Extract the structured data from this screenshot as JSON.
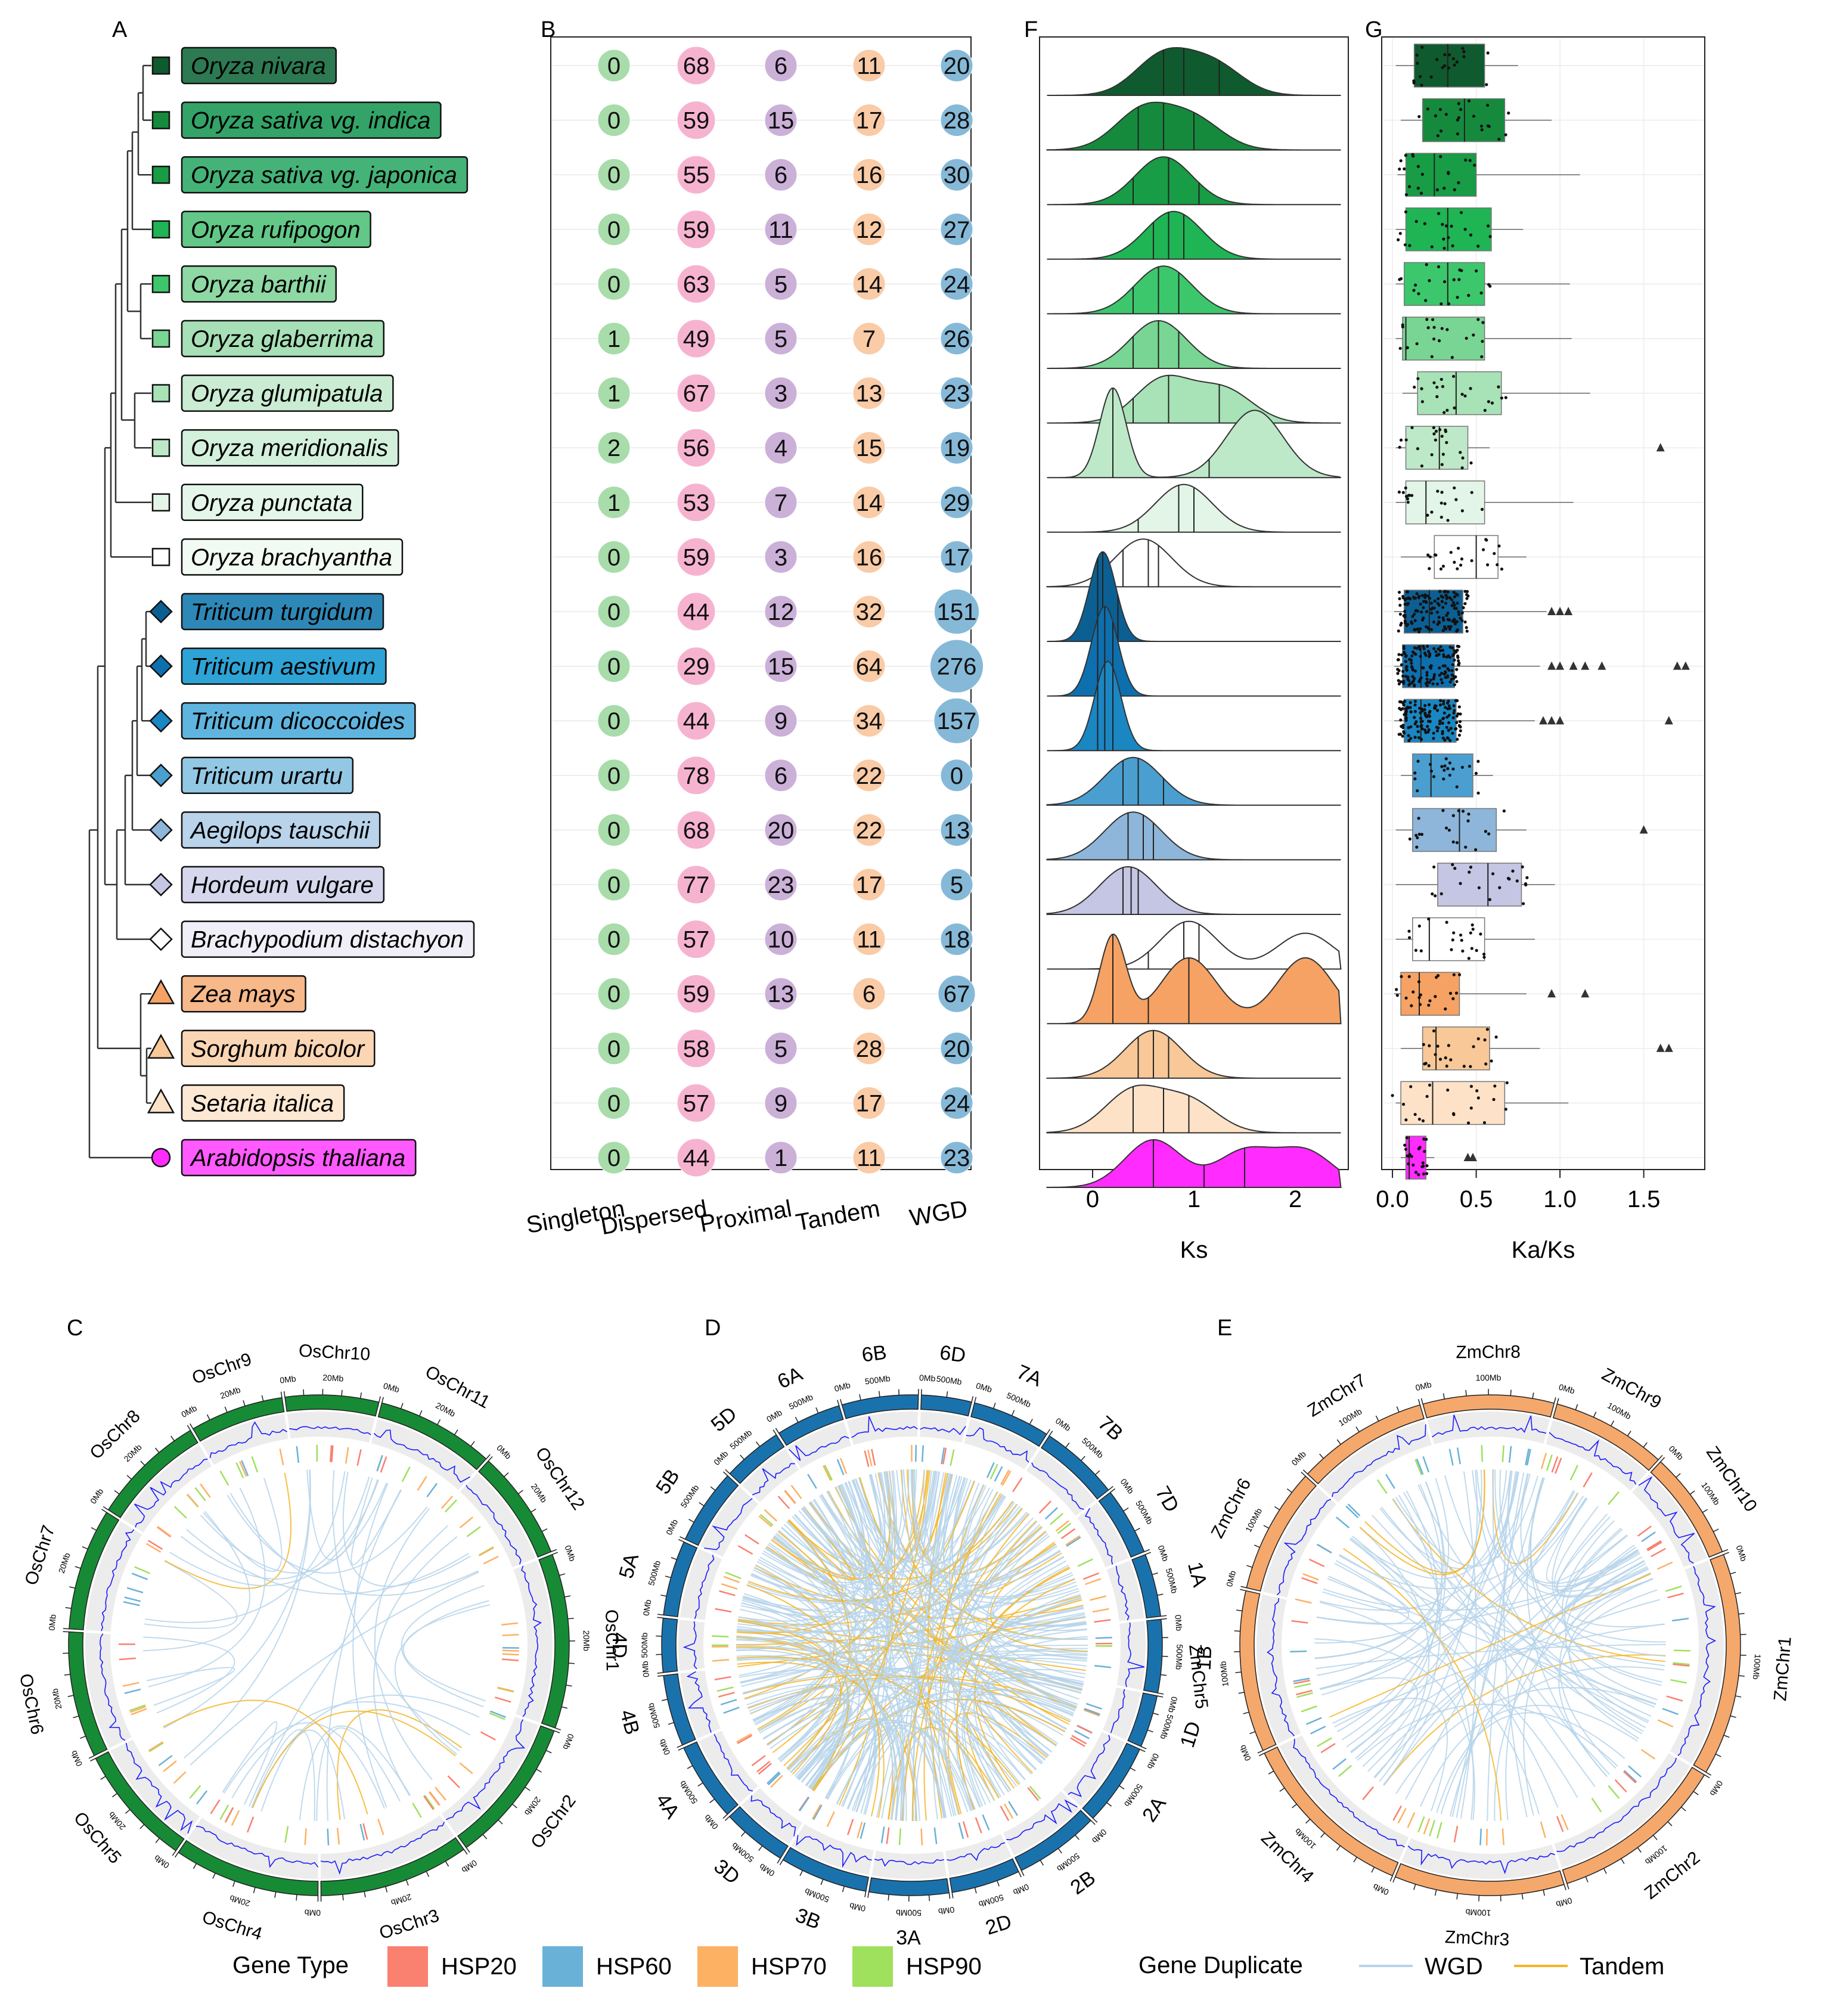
{
  "panel_labels": {
    "A": "A",
    "B": "B",
    "F": "F",
    "G": "G",
    "C": "C",
    "D": "D",
    "E": "E"
  },
  "species": [
    {
      "name": "Oryza nivara",
      "color": "#2d7a52",
      "text_color": "#000000",
      "marker": "square",
      "marker_color": "#0f5a2e"
    },
    {
      "name": "Oryza sativa vg. indica",
      "color": "#33a368",
      "text_color": "#000000",
      "marker": "square",
      "marker_color": "#158a3d"
    },
    {
      "name": "Oryza sativa vg. japonica",
      "color": "#45b377",
      "text_color": "#000000",
      "marker": "square",
      "marker_color": "#189c45"
    },
    {
      "name": "Oryza rufipogon",
      "color": "#63c887",
      "text_color": "#000000",
      "marker": "square",
      "marker_color": "#1fb454"
    },
    {
      "name": "Oryza barthii",
      "color": "#8ed8a4",
      "text_color": "#000000",
      "marker": "square",
      "marker_color": "#3dc76c"
    },
    {
      "name": "Oryza glaberrima",
      "color": "#a7e0b6",
      "text_color": "#000000",
      "marker": "square",
      "marker_color": "#79d593"
    },
    {
      "name": "Oryza glumipatula",
      "color": "#c9ecd2",
      "text_color": "#000000",
      "marker": "square",
      "marker_color": "#a8e2b7"
    },
    {
      "name": "Oryza meridionalis",
      "color": "#d3f0dc",
      "text_color": "#000000",
      "marker": "square",
      "marker_color": "#bde9c8"
    },
    {
      "name": "Oryza punctata",
      "color": "#e4f6e9",
      "text_color": "#000000",
      "marker": "square",
      "marker_color": "#e2f5e7"
    },
    {
      "name": "Oryza brachyantha",
      "color": "#f2faf4",
      "text_color": "#000000",
      "marker": "square",
      "marker_color": "#ffffff"
    },
    {
      "name": "Triticum turgidum",
      "color": "#2e88b7",
      "text_color": "#000000",
      "marker": "diamond",
      "marker_color": "#0c5f93"
    },
    {
      "name": "Triticum aestivum",
      "color": "#2ea3d6",
      "text_color": "#000000",
      "marker": "diamond",
      "marker_color": "#0e6fae"
    },
    {
      "name": "Triticum dicoccoides",
      "color": "#5fb5df",
      "text_color": "#000000",
      "marker": "diamond",
      "marker_color": "#1a86c2"
    },
    {
      "name": "Triticum urartu",
      "color": "#93c8e4",
      "text_color": "#000000",
      "marker": "diamond",
      "marker_color": "#4a9fd0"
    },
    {
      "name": "Aegilops tauschii",
      "color": "#b9d3ea",
      "text_color": "#000000",
      "marker": "diamond",
      "marker_color": "#8eb6da"
    },
    {
      "name": "Hordeum vulgare",
      "color": "#d6d7ec",
      "text_color": "#000000",
      "marker": "diamond",
      "marker_color": "#c4c6e4"
    },
    {
      "name": "Brachypodium distachyon",
      "color": "#f0eef6",
      "text_color": "#000000",
      "marker": "diamond",
      "marker_color": "#ffffff"
    },
    {
      "name": "Zea mays",
      "color": "#f7b88a",
      "text_color": "#000000",
      "marker": "triangle",
      "marker_color": "#f5a264"
    },
    {
      "name": "Sorghum bicolor",
      "color": "#fbd6b4",
      "text_color": "#000000",
      "marker": "triangle",
      "marker_color": "#f8c898"
    },
    {
      "name": "Setaria italica",
      "color": "#fde8d3",
      "text_color": "#000000",
      "marker": "triangle",
      "marker_color": "#fde2c8"
    },
    {
      "name": "Arabidopsis thaliana",
      "color": "#ff5aff",
      "text_color": "#000000",
      "marker": "circle",
      "marker_color": "#ff2bff"
    }
  ],
  "chart_data": [
    {
      "type": "table",
      "title": "B",
      "columns": [
        "Singleton",
        "Dispersed",
        "Proximal",
        "Tandem",
        "WGD"
      ],
      "column_colors": [
        "#a8dcaa",
        "#f6b3cf",
        "#cbb0d8",
        "#f9cba6",
        "#86b9d8"
      ],
      "rows": [
        [
          0,
          68,
          6,
          11,
          20
        ],
        [
          0,
          59,
          15,
          17,
          28
        ],
        [
          0,
          55,
          6,
          16,
          30
        ],
        [
          0,
          59,
          11,
          12,
          27
        ],
        [
          0,
          63,
          5,
          14,
          24
        ],
        [
          1,
          49,
          5,
          7,
          26
        ],
        [
          1,
          67,
          3,
          13,
          23
        ],
        [
          2,
          56,
          4,
          15,
          19
        ],
        [
          1,
          53,
          7,
          14,
          29
        ],
        [
          0,
          59,
          3,
          16,
          17
        ],
        [
          0,
          44,
          12,
          32,
          151
        ],
        [
          0,
          29,
          15,
          64,
          276
        ],
        [
          0,
          44,
          9,
          34,
          157
        ],
        [
          0,
          78,
          6,
          22,
          0
        ],
        [
          0,
          68,
          20,
          22,
          13
        ],
        [
          0,
          77,
          23,
          17,
          5
        ],
        [
          0,
          57,
          10,
          11,
          18
        ],
        [
          0,
          59,
          13,
          6,
          67
        ],
        [
          0,
          58,
          5,
          28,
          20
        ],
        [
          0,
          57,
          9,
          17,
          24
        ],
        [
          0,
          44,
          1,
          11,
          23
        ]
      ]
    },
    {
      "type": "area",
      "title": "F",
      "xlabel": "Ks",
      "xlim": [
        -0.5,
        2.5
      ],
      "xticks": [
        0,
        1,
        2
      ],
      "note": "ridgeline density of Ks per species; peak = modal Ks, quartile lines shown",
      "series": [
        {
          "name": "Oryza nivara",
          "peaks": [
            0.7,
            1.2
          ],
          "quartiles": [
            0.7,
            0.9,
            1.25
          ]
        },
        {
          "name": "Oryza sativa vg. indica",
          "peaks": [
            0.5,
            1.0
          ],
          "quartiles": [
            0.45,
            0.7,
            1.0
          ]
        },
        {
          "name": "Oryza sativa vg. japonica",
          "peaks": [
            0.7
          ],
          "quartiles": [
            0.4,
            0.75,
            1.05
          ]
        },
        {
          "name": "Oryza rufipogon",
          "peaks": [
            0.8
          ],
          "quartiles": [
            0.6,
            0.75,
            0.9
          ]
        },
        {
          "name": "Oryza barthii",
          "peaks": [
            0.7
          ],
          "quartiles": [
            0.4,
            0.65,
            0.85
          ]
        },
        {
          "name": "Oryza glaberrima",
          "peaks": [
            0.65
          ],
          "quartiles": [
            0.4,
            0.65,
            0.85
          ]
        },
        {
          "name": "Oryza glumipatula",
          "peaks": [
            0.7,
            1.3
          ],
          "quartiles": [
            0.4,
            0.75,
            1.25
          ]
        },
        {
          "name": "Oryza meridionalis",
          "peaks": [
            0.2,
            1.6
          ],
          "quartiles": [
            0.2,
            0.7,
            1.15
          ]
        },
        {
          "name": "Oryza punctata",
          "peaks": [
            0.9
          ],
          "quartiles": [
            0.45,
            0.85,
            1.0
          ]
        },
        {
          "name": "Oryza brachyantha",
          "peaks": [
            0.5
          ],
          "quartiles": [
            0.3,
            0.55,
            0.65
          ]
        },
        {
          "name": "Triticum turgidum",
          "peaks": [
            0.1
          ],
          "quartiles": [
            0.05,
            0.1,
            0.25
          ]
        },
        {
          "name": "Triticum aestivum",
          "peaks": [
            0.12
          ],
          "quartiles": [
            0.05,
            0.12,
            0.2
          ]
        },
        {
          "name": "Triticum dicoccoides",
          "peaks": [
            0.15
          ],
          "quartiles": [
            0.05,
            0.12,
            0.2
          ]
        },
        {
          "name": "Triticum urartu",
          "peaks": [
            0.4
          ],
          "quartiles": [
            0.3,
            0.45,
            0.7
          ]
        },
        {
          "name": "Aegilops tauschii",
          "peaks": [
            0.4
          ],
          "quartiles": [
            0.35,
            0.5,
            0.6
          ]
        },
        {
          "name": "Hordeum vulgare",
          "peaks": [
            0.35
          ],
          "quartiles": [
            0.3,
            0.38,
            0.45
          ]
        },
        {
          "name": "Brachypodium distachyon",
          "peaks": [
            0.95,
            2.1
          ],
          "quartiles": [
            0.55,
            0.9,
            1.05
          ]
        },
        {
          "name": "Zea mays",
          "peaks": [
            0.2,
            0.95,
            2.1
          ],
          "quartiles": [
            0.2,
            0.55,
            0.95
          ]
        },
        {
          "name": "Sorghum bicolor",
          "peaks": [
            0.6
          ],
          "quartiles": [
            0.45,
            0.6,
            0.75
          ]
        },
        {
          "name": "Setaria italica",
          "peaks": [
            0.4,
            0.95
          ],
          "quartiles": [
            0.4,
            0.7,
            0.95
          ]
        },
        {
          "name": "Arabidopsis thaliana",
          "peaks": [
            0.6,
            1.5,
            2.1
          ],
          "quartiles": [
            0.6,
            1.1,
            1.5
          ]
        }
      ]
    },
    {
      "type": "bar",
      "subtype": "boxplot",
      "title": "G",
      "xlabel": "Ka/Ks",
      "xlim": [
        -0.05,
        1.85
      ],
      "xticks": [
        0.0,
        0.5,
        1.0,
        1.5
      ],
      "series": [
        {
          "name": "Oryza nivara",
          "q1": 0.13,
          "median": 0.33,
          "q3": 0.55,
          "whisker": [
            0.02,
            0.75
          ],
          "outliers": []
        },
        {
          "name": "Oryza sativa vg. indica",
          "q1": 0.18,
          "median": 0.43,
          "q3": 0.67,
          "whisker": [
            0.05,
            0.95
          ],
          "outliers": []
        },
        {
          "name": "Oryza sativa vg. japonica",
          "q1": 0.08,
          "median": 0.25,
          "q3": 0.5,
          "whisker": [
            0.03,
            1.12
          ],
          "outliers": []
        },
        {
          "name": "Oryza rufipogon",
          "q1": 0.08,
          "median": 0.33,
          "q3": 0.59,
          "whisker": [
            0.02,
            0.78
          ],
          "outliers": []
        },
        {
          "name": "Oryza barthii",
          "q1": 0.07,
          "median": 0.33,
          "q3": 0.55,
          "whisker": [
            0.02,
            1.06
          ],
          "outliers": []
        },
        {
          "name": "Oryza glaberrima",
          "q1": 0.06,
          "median": 0.08,
          "q3": 0.55,
          "whisker": [
            0.02,
            1.07
          ],
          "outliers": []
        },
        {
          "name": "Oryza glumipatula",
          "q1": 0.15,
          "median": 0.38,
          "q3": 0.65,
          "whisker": [
            0.06,
            1.18
          ],
          "outliers": []
        },
        {
          "name": "Oryza meridionalis",
          "q1": 0.08,
          "median": 0.28,
          "q3": 0.45,
          "whisker": [
            0.02,
            0.58
          ],
          "outliers": [
            1.6
          ]
        },
        {
          "name": "Oryza punctata",
          "q1": 0.08,
          "median": 0.2,
          "q3": 0.55,
          "whisker": [
            0.02,
            1.08
          ],
          "outliers": []
        },
        {
          "name": "Oryza brachyantha",
          "q1": 0.25,
          "median": 0.5,
          "q3": 0.63,
          "whisker": [
            0.05,
            0.8
          ],
          "outliers": []
        },
        {
          "name": "Triticum turgidum",
          "q1": 0.07,
          "median": 0.22,
          "q3": 0.42,
          "whisker": [
            0.01,
            0.92
          ],
          "outliers": [
            0.95,
            1.0,
            1.05
          ]
        },
        {
          "name": "Triticum aestivum",
          "q1": 0.06,
          "median": 0.17,
          "q3": 0.37,
          "whisker": [
            0.01,
            0.88
          ],
          "outliers": [
            0.95,
            1.0,
            1.08,
            1.15,
            1.25,
            1.7,
            1.75
          ]
        },
        {
          "name": "Triticum dicoccoides",
          "q1": 0.07,
          "median": 0.17,
          "q3": 0.38,
          "whisker": [
            0.01,
            0.85
          ],
          "outliers": [
            0.9,
            0.95,
            1.0,
            1.65
          ]
        },
        {
          "name": "Triticum urartu",
          "q1": 0.12,
          "median": 0.23,
          "q3": 0.48,
          "whisker": [
            0.05,
            0.6
          ],
          "outliers": []
        },
        {
          "name": "Aegilops tauschii",
          "q1": 0.12,
          "median": 0.4,
          "q3": 0.62,
          "whisker": [
            0.02,
            0.8
          ],
          "outliers": [
            1.5
          ]
        },
        {
          "name": "Hordeum vulgare",
          "q1": 0.27,
          "median": 0.57,
          "q3": 0.77,
          "whisker": [
            0.02,
            0.97
          ],
          "outliers": []
        },
        {
          "name": "Brachypodium distachyon",
          "q1": 0.12,
          "median": 0.22,
          "q3": 0.55,
          "whisker": [
            0.02,
            0.85
          ],
          "outliers": []
        },
        {
          "name": "Zea mays",
          "q1": 0.05,
          "median": 0.16,
          "q3": 0.4,
          "whisker": [
            0.01,
            0.8
          ],
          "outliers": [
            0.95,
            1.15
          ]
        },
        {
          "name": "Sorghum bicolor",
          "q1": 0.18,
          "median": 0.26,
          "q3": 0.58,
          "whisker": [
            0.05,
            0.88
          ],
          "outliers": [
            1.6,
            1.65
          ]
        },
        {
          "name": "Setaria italica",
          "q1": 0.05,
          "median": 0.24,
          "q3": 0.67,
          "whisker": [
            0.02,
            1.05
          ],
          "outliers": []
        },
        {
          "name": "Arabidopsis thaliana",
          "q1": 0.08,
          "median": 0.1,
          "q3": 0.2,
          "whisker": [
            0.05,
            0.25
          ],
          "outliers": [
            0.45,
            0.48
          ]
        }
      ]
    }
  ],
  "circos": {
    "C": {
      "title": "C",
      "ring_color": "#178a35",
      "tick_labels": [
        "0Mb",
        "20Mb",
        "40Mb"
      ],
      "chromosomes": [
        "OsChr1",
        "OsChr2",
        "OsChr3",
        "OsChr4",
        "OsChr5",
        "OsChr6",
        "OsChr7",
        "OsChr8",
        "OsChr9",
        "OsChr10",
        "OsChr11",
        "OsChr12"
      ],
      "sizes": [
        43,
        36,
        37,
        36,
        30,
        31,
        30,
        28,
        23,
        23,
        29,
        27
      ]
    },
    "D": {
      "title": "D",
      "ring_color": "#1a72ad",
      "tick_labels": [
        "0Mb",
        "500Mb"
      ],
      "chromosomes": [
        "1A",
        "1B",
        "1D",
        "2A",
        "2B",
        "2D",
        "3A",
        "3B",
        "3D",
        "4A",
        "4B",
        "4D",
        "5A",
        "5B",
        "5D",
        "6A",
        "6B",
        "6D",
        "7A",
        "7B",
        "7D"
      ],
      "sizes": [
        594,
        689,
        495,
        780,
        801,
        651,
        750,
        830,
        615,
        744,
        673,
        509,
        709,
        713,
        566,
        618,
        720,
        473,
        736,
        750,
        638
      ]
    },
    "E": {
      "title": "E",
      "ring_color": "#f5a86c",
      "tick_labels": [
        "0Mb",
        "100Mb",
        "200Mb",
        "300Mb"
      ],
      "chromosomes": [
        "ZmChr1",
        "ZmChr2",
        "ZmChr3",
        "ZmChr4",
        "ZmChr5",
        "ZmChr6",
        "ZmChr7",
        "ZmChr8",
        "ZmChr9",
        "ZmChr10"
      ],
      "sizes": [
        308,
        244,
        235,
        247,
        223,
        174,
        182,
        181,
        159,
        150
      ]
    }
  },
  "legend": {
    "gene_type_title": "Gene Type",
    "gene_types": [
      {
        "label": "HSP20",
        "color": "#fa8070"
      },
      {
        "label": "HSP60",
        "color": "#6ab1d8"
      },
      {
        "label": "HSP70",
        "color": "#fdb163"
      },
      {
        "label": "HSP90",
        "color": "#9fe05c"
      }
    ],
    "dup_title": "Gene Duplicate",
    "dup_types": [
      {
        "label": "WGD",
        "color": "#b6d3ea"
      },
      {
        "label": "Tandem",
        "color": "#f5b526"
      }
    ]
  }
}
